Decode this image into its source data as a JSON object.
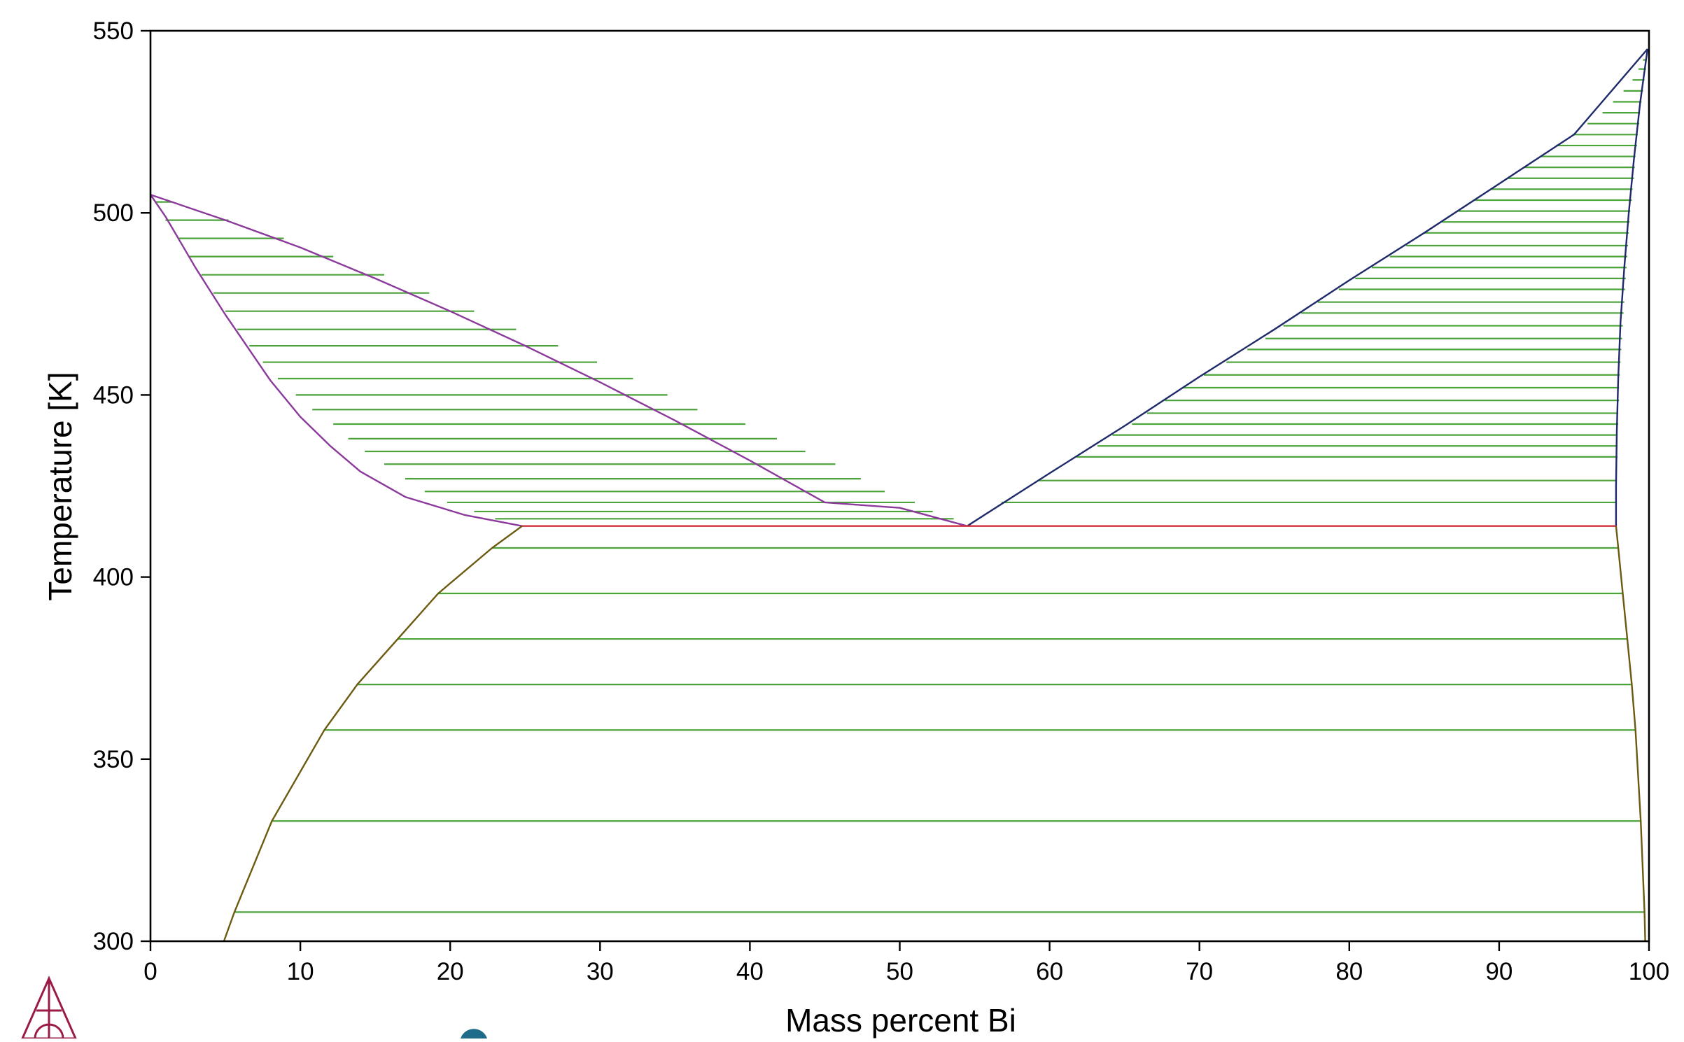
{
  "chart_data": {
    "type": "line",
    "xlabel": "Mass percent Bi",
    "ylabel": "Temperature [K]",
    "xlim": [
      0,
      100
    ],
    "ylim": [
      300,
      550
    ],
    "x_ticks": [
      0,
      10,
      20,
      30,
      40,
      50,
      60,
      70,
      80,
      90,
      100
    ],
    "y_ticks": [
      300,
      350,
      400,
      450,
      500,
      550
    ],
    "grid": false,
    "legend": "none",
    "colors": {
      "liquidus_sn_side": "#8B3A9B",
      "solidus_sn_side": "#8B3A9B",
      "liquidus_bi_side": "#1F2A6B",
      "solidus_bi_side": "#1F2A6B",
      "eutectic": "#D2303A",
      "solvus": "#6B5A10",
      "tie_lines": "#4CA33A",
      "frame": "#000000"
    },
    "series": [
      {
        "id": "liquidus_sn_side",
        "points": [
          [
            0,
            505
          ],
          [
            5,
            498
          ],
          [
            10,
            490.5
          ],
          [
            15,
            482
          ],
          [
            20,
            473
          ],
          [
            25,
            463.5
          ],
          [
            30,
            453.5
          ],
          [
            35,
            443
          ],
          [
            40,
            432
          ],
          [
            45,
            420.5
          ],
          [
            50,
            419
          ],
          [
            54.5,
            414
          ]
        ]
      },
      {
        "id": "solidus_sn_side",
        "points": [
          [
            0,
            505
          ],
          [
            1,
            499
          ],
          [
            2,
            492
          ],
          [
            3,
            485
          ],
          [
            4,
            478.5
          ],
          [
            5,
            472
          ],
          [
            6,
            466
          ],
          [
            7,
            460
          ],
          [
            8,
            454
          ],
          [
            10,
            444
          ],
          [
            12,
            436
          ],
          [
            14,
            429
          ],
          [
            17,
            422
          ],
          [
            21,
            417
          ],
          [
            24.8,
            414
          ]
        ]
      },
      {
        "id": "liquidus_bi_side",
        "points": [
          [
            54.5,
            414
          ],
          [
            60,
            428.5
          ],
          [
            65,
            441.5
          ],
          [
            70,
            455
          ],
          [
            75,
            468
          ],
          [
            80,
            481.5
          ],
          [
            85,
            494.5
          ],
          [
            90,
            508
          ],
          [
            95,
            521.5
          ],
          [
            99.9,
            545
          ]
        ]
      },
      {
        "id": "solidus_bi_side",
        "points": [
          [
            97.8,
            414
          ],
          [
            97.8,
            425
          ],
          [
            97.85,
            440
          ],
          [
            97.95,
            455
          ],
          [
            98.1,
            470
          ],
          [
            98.35,
            485
          ],
          [
            98.65,
            500
          ],
          [
            99.0,
            515
          ],
          [
            99.4,
            530
          ],
          [
            99.9,
            545
          ]
        ]
      },
      {
        "id": "eutectic",
        "points": [
          [
            24.8,
            414
          ],
          [
            54.5,
            414
          ],
          [
            97.8,
            414
          ]
        ]
      },
      {
        "id": "solvus_sn_side",
        "points": [
          [
            24.8,
            414
          ],
          [
            22.8,
            408
          ],
          [
            19.2,
            395.5
          ],
          [
            16.5,
            383
          ],
          [
            13.8,
            370.5
          ],
          [
            11.6,
            358
          ],
          [
            8.1,
            333
          ],
          [
            5.6,
            308
          ],
          [
            4.9,
            300
          ]
        ]
      },
      {
        "id": "solvus_bi_side",
        "points": [
          [
            97.8,
            414
          ],
          [
            97.95,
            408
          ],
          [
            98.25,
            395.5
          ],
          [
            98.55,
            383
          ],
          [
            98.85,
            370.5
          ],
          [
            99.1,
            358
          ],
          [
            99.45,
            333
          ],
          [
            99.7,
            308
          ],
          [
            99.75,
            300
          ]
        ]
      }
    ],
    "tie_lines": {
      "sn_side_liquid_solid": [
        {
          "t": 503,
          "x1": 0.3,
          "x2": 1.5
        },
        {
          "t": 498,
          "x1": 1,
          "x2": 5.2
        },
        {
          "t": 493,
          "x1": 1.9,
          "x2": 8.9
        },
        {
          "t": 488,
          "x1": 2.6,
          "x2": 12.2
        },
        {
          "t": 483,
          "x1": 3.4,
          "x2": 15.6
        },
        {
          "t": 478,
          "x1": 4.2,
          "x2": 18.6
        },
        {
          "t": 473,
          "x1": 5.0,
          "x2": 21.6
        },
        {
          "t": 468,
          "x1": 5.8,
          "x2": 24.4
        },
        {
          "t": 463.5,
          "x1": 6.6,
          "x2": 27.2
        },
        {
          "t": 459,
          "x1": 7.5,
          "x2": 29.8
        },
        {
          "t": 454.5,
          "x1": 8.5,
          "x2": 32.2
        },
        {
          "t": 450,
          "x1": 9.7,
          "x2": 34.5
        },
        {
          "t": 446,
          "x1": 10.8,
          "x2": 36.5
        },
        {
          "t": 442,
          "x1": 12.2,
          "x2": 39.7
        },
        {
          "t": 438,
          "x1": 13.2,
          "x2": 41.8
        },
        {
          "t": 434.5,
          "x1": 14.3,
          "x2": 43.7
        },
        {
          "t": 431,
          "x1": 15.6,
          "x2": 45.7
        },
        {
          "t": 427,
          "x1": 17.0,
          "x2": 47.4
        },
        {
          "t": 423.5,
          "x1": 18.3,
          "x2": 49.0
        },
        {
          "t": 420.5,
          "x1": 19.8,
          "x2": 51.0
        },
        {
          "t": 418,
          "x1": 21.6,
          "x2": 52.2
        },
        {
          "t": 416,
          "x1": 23.0,
          "x2": 53.6
        }
      ],
      "bi_side_liquid_solid": [
        {
          "t": 420.5,
          "x1": 56.8,
          "x2": 97.85
        },
        {
          "t": 426.5,
          "x1": 59.3,
          "x2": 97.85
        },
        {
          "t": 433,
          "x1": 61.8,
          "x2": 97.9
        },
        {
          "t": 436,
          "x1": 63.2,
          "x2": 97.9
        },
        {
          "t": 439,
          "x1": 64.2,
          "x2": 97.9
        },
        {
          "t": 442,
          "x1": 65.5,
          "x2": 97.95
        },
        {
          "t": 445,
          "x1": 66.5,
          "x2": 97.95
        },
        {
          "t": 448.5,
          "x1": 67.7,
          "x2": 98.0
        },
        {
          "t": 452,
          "x1": 68.9,
          "x2": 98.0
        },
        {
          "t": 455.5,
          "x1": 70.3,
          "x2": 98.05
        },
        {
          "t": 459,
          "x1": 71.8,
          "x2": 98.1
        },
        {
          "t": 462.5,
          "x1": 73.2,
          "x2": 98.15
        },
        {
          "t": 465.5,
          "x1": 74.4,
          "x2": 98.2
        },
        {
          "t": 469,
          "x1": 75.6,
          "x2": 98.25
        },
        {
          "t": 472.5,
          "x1": 76.8,
          "x2": 98.3
        },
        {
          "t": 475.5,
          "x1": 77.9,
          "x2": 98.35
        },
        {
          "t": 479,
          "x1": 79.3,
          "x2": 98.4
        },
        {
          "t": 482,
          "x1": 80.4,
          "x2": 98.45
        },
        {
          "t": 485,
          "x1": 81.5,
          "x2": 98.5
        },
        {
          "t": 488,
          "x1": 82.7,
          "x2": 98.55
        },
        {
          "t": 491,
          "x1": 83.8,
          "x2": 98.6
        },
        {
          "t": 494.5,
          "x1": 85.0,
          "x2": 98.65
        },
        {
          "t": 497.5,
          "x1": 86.2,
          "x2": 98.7
        },
        {
          "t": 500.5,
          "x1": 87.3,
          "x2": 98.75
        },
        {
          "t": 503.5,
          "x1": 88.4,
          "x2": 98.85
        },
        {
          "t": 506.5,
          "x1": 89.5,
          "x2": 98.9
        },
        {
          "t": 509.5,
          "x1": 90.6,
          "x2": 99.0
        },
        {
          "t": 512.5,
          "x1": 91.7,
          "x2": 99.05
        },
        {
          "t": 515.5,
          "x1": 92.8,
          "x2": 99.1
        },
        {
          "t": 518.5,
          "x1": 93.8,
          "x2": 99.2
        },
        {
          "t": 521.5,
          "x1": 94.9,
          "x2": 99.25
        },
        {
          "t": 524.5,
          "x1": 95.9,
          "x2": 99.35
        },
        {
          "t": 527.5,
          "x1": 96.9,
          "x2": 99.4
        },
        {
          "t": 530.5,
          "x1": 97.6,
          "x2": 99.5
        },
        {
          "t": 533.5,
          "x1": 98.3,
          "x2": 99.6
        },
        {
          "t": 536.5,
          "x1": 98.9,
          "x2": 99.7
        },
        {
          "t": 539.5,
          "x1": 99.3,
          "x2": 99.8
        },
        {
          "t": 542,
          "x1": 99.6,
          "x2": 99.85
        }
      ],
      "two_solid": [
        {
          "t": 408,
          "x1": 22.8,
          "x2": 97.95
        },
        {
          "t": 395.5,
          "x1": 19.2,
          "x2": 98.25
        },
        {
          "t": 383,
          "x1": 16.5,
          "x2": 98.55
        },
        {
          "t": 370.5,
          "x1": 13.8,
          "x2": 98.85
        },
        {
          "t": 358,
          "x1": 11.6,
          "x2": 99.1
        },
        {
          "t": 333,
          "x1": 8.1,
          "x2": 99.45
        },
        {
          "t": 308,
          "x1": 5.6,
          "x2": 99.7
        }
      ]
    }
  },
  "logos": {
    "bottom_left": "thermo-calc-logo-icon",
    "bottom_center": "logo-partial-circle-icon"
  }
}
